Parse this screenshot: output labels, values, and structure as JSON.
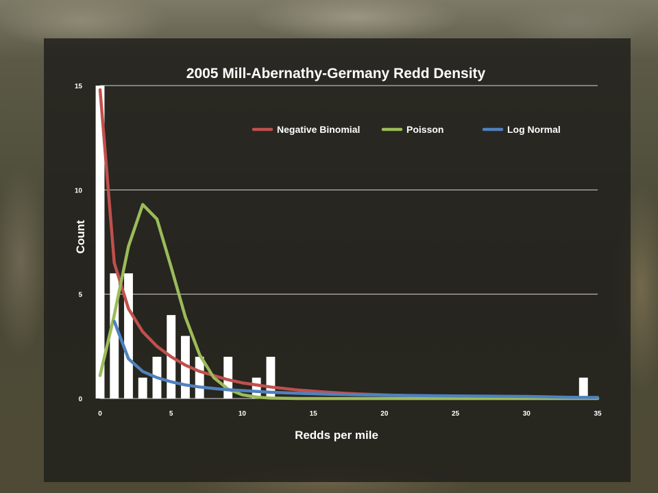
{
  "chart_data": {
    "type": "bar",
    "title": "2005 Mill-Abernathy-Germany Redd Density",
    "xlabel": "Redds per mile",
    "ylabel": "Count",
    "xlim": [
      0,
      35
    ],
    "ylim": [
      0,
      15
    ],
    "xticks": [
      0,
      5,
      10,
      15,
      20,
      25,
      30,
      35
    ],
    "yticks": [
      0,
      5,
      10,
      15
    ],
    "grid": "horizontal",
    "legend": "top-right",
    "bars": {
      "x": [
        0,
        1,
        2,
        3,
        4,
        5,
        6,
        7,
        8,
        9,
        10,
        11,
        12,
        13,
        14,
        15,
        16,
        17,
        18,
        19,
        20,
        21,
        22,
        23,
        24,
        25,
        26,
        27,
        28,
        29,
        30,
        31,
        32,
        33,
        34
      ],
      "values": [
        15,
        6,
        6,
        1,
        2,
        4,
        3,
        2,
        0,
        2,
        0,
        1,
        2,
        0,
        0,
        0,
        0,
        0,
        0,
        0,
        0,
        0,
        0,
        0,
        0,
        0,
        0,
        0,
        0,
        0,
        0,
        0,
        0,
        0,
        1
      ],
      "color": "#ffffff"
    },
    "series": [
      {
        "name": "Negative Binomial",
        "color": "#c0504d",
        "x": [
          0,
          1,
          2,
          3,
          4,
          5,
          6,
          7,
          8,
          9,
          10,
          12,
          14,
          16,
          18,
          20,
          25,
          30,
          35
        ],
        "values": [
          14.8,
          6.5,
          4.3,
          3.2,
          2.5,
          2.0,
          1.6,
          1.3,
          1.1,
          0.9,
          0.75,
          0.55,
          0.4,
          0.3,
          0.22,
          0.17,
          0.08,
          0.04,
          0.02
        ]
      },
      {
        "name": "Poisson",
        "color": "#9bbb59",
        "x": [
          0,
          1,
          2,
          3,
          4,
          5,
          6,
          7,
          8,
          9,
          10,
          11,
          12,
          14,
          16,
          20,
          25,
          30,
          35
        ],
        "values": [
          1.1,
          4.0,
          7.3,
          9.3,
          8.6,
          6.3,
          3.9,
          2.1,
          1.0,
          0.45,
          0.18,
          0.07,
          0.02,
          0,
          0,
          0,
          0,
          0,
          0
        ]
      },
      {
        "name": "Log Normal",
        "color": "#4f81bd",
        "x": [
          1,
          2,
          3,
          4,
          5,
          6,
          7,
          8,
          9,
          10,
          12,
          14,
          16,
          18,
          20,
          25,
          30,
          33,
          35
        ],
        "values": [
          3.7,
          1.9,
          1.3,
          1.0,
          0.8,
          0.65,
          0.55,
          0.48,
          0.42,
          0.38,
          0.3,
          0.25,
          0.21,
          0.18,
          0.16,
          0.12,
          0.1,
          0.06,
          0.05
        ]
      }
    ]
  }
}
